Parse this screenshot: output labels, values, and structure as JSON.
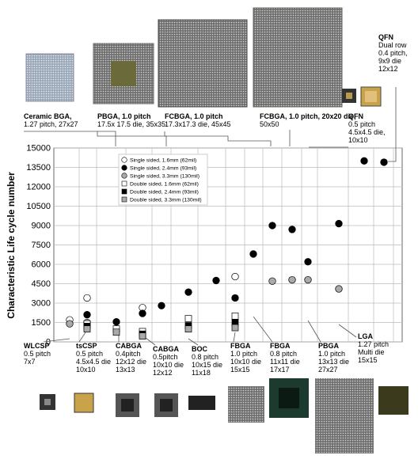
{
  "chart_data": {
    "type": "scatter",
    "y_label": "Characteristic Life cycle number",
    "ylim": [
      0,
      15000
    ],
    "yticks": [
      0,
      1500,
      3000,
      4500,
      6000,
      7500,
      9000,
      10500,
      12000,
      13500,
      15000
    ],
    "grid": true,
    "legend": "upper left",
    "categories": [
      null,
      null,
      null,
      null,
      null,
      null,
      null,
      null,
      null,
      null,
      null,
      null,
      null,
      null,
      null
    ],
    "series": [
      {
        "name": "Single sided, 1.6mm (62mil)",
        "color": "#ffffff",
        "marker": "circle",
        "values": [
          1700,
          3400,
          null,
          2650,
          null,
          null,
          null,
          5050,
          null,
          null,
          null,
          null,
          null,
          null,
          null
        ]
      },
      {
        "name": "Single sided, 2.4mm (93mil)",
        "color": "#000000",
        "marker": "circle",
        "values": [
          null,
          2100,
          1550,
          2200,
          2800,
          3850,
          4750,
          3400,
          6800,
          9000,
          8700,
          6200,
          9150,
          14000,
          13900
        ]
      },
      {
        "name": "Single sided, 3.3mm (130mil)",
        "color": "#aaaaaa",
        "marker": "circle",
        "values": [
          1400,
          1500,
          null,
          null,
          null,
          null,
          null,
          null,
          null,
          4700,
          4800,
          4800,
          4100,
          null,
          null
        ]
      },
      {
        "name": "Double sided, 1.6mm (62mil)",
        "color": "#ffffff",
        "marker": "square",
        "values": [
          null,
          1400,
          1000,
          800,
          null,
          1800,
          null,
          2000,
          null,
          null,
          null,
          null,
          null,
          null,
          null
        ]
      },
      {
        "name": "Double sided, 2.4mm (93mil)",
        "color": "#000000",
        "marker": "square",
        "values": [
          null,
          1200,
          null,
          600,
          null,
          1250,
          null,
          1500,
          null,
          null,
          null,
          null,
          null,
          null,
          null
        ]
      },
      {
        "name": "Double sided, 3.3mm (130mil)",
        "color": "#aaaaaa",
        "marker": "square",
        "values": [
          null,
          1000,
          750,
          450,
          null,
          1000,
          null,
          1100,
          null,
          null,
          null,
          null,
          null,
          null,
          null
        ]
      }
    ],
    "annotations": [
      {
        "lines": [
          "Ceramic BGA,",
          "1.27 pitch, 27x27"
        ]
      },
      {
        "lines": [
          "PBGA, 1.0 pitch",
          "17.5x 17.5 die, 35x35"
        ]
      },
      {
        "lines": [
          "FCBGA, 1.0 pitch",
          "17.3x17.3 die, 45x45"
        ]
      },
      {
        "lines": [
          "FCBGA, 1.0 pitch, 20x20 die,",
          "50x50"
        ]
      },
      {
        "lines": [
          "QFN",
          "0.5 pitch",
          "4.5x4.5 die,",
          "10x10"
        ]
      },
      {
        "lines": [
          "QFN",
          "Dual row",
          "0.4 pitch,",
          "9x9 die",
          "12x12"
        ]
      },
      {
        "lines": [
          "WLCSP",
          "0.5 pitch",
          "7x7"
        ]
      },
      {
        "lines": [
          "tsCSP",
          "0.5 pitch",
          "4.5x4.5 die",
          "10x10"
        ]
      },
      {
        "lines": [
          "CABGA",
          "0.4pitch",
          "12x12 die",
          "13x13"
        ]
      },
      {
        "lines": [
          "CABGA",
          "0.5pitch",
          "10x10 die",
          "12x12"
        ]
      },
      {
        "lines": [
          "BOC",
          "0.8 pitch",
          "10x15 die",
          "11x18"
        ]
      },
      {
        "lines": [
          "FBGA",
          "1.0 pitch",
          "10x10 die",
          "15x15"
        ]
      },
      {
        "lines": [
          "FBGA",
          "0.8 pitch",
          "11x11 die",
          "17x17"
        ]
      },
      {
        "lines": [
          "PBGA",
          "1.0 pitch",
          "13x13 die",
          "27x27"
        ]
      },
      {
        "lines": [
          "LGA",
          "1.27 pitch",
          "Multi die",
          "15x15"
        ]
      }
    ]
  }
}
